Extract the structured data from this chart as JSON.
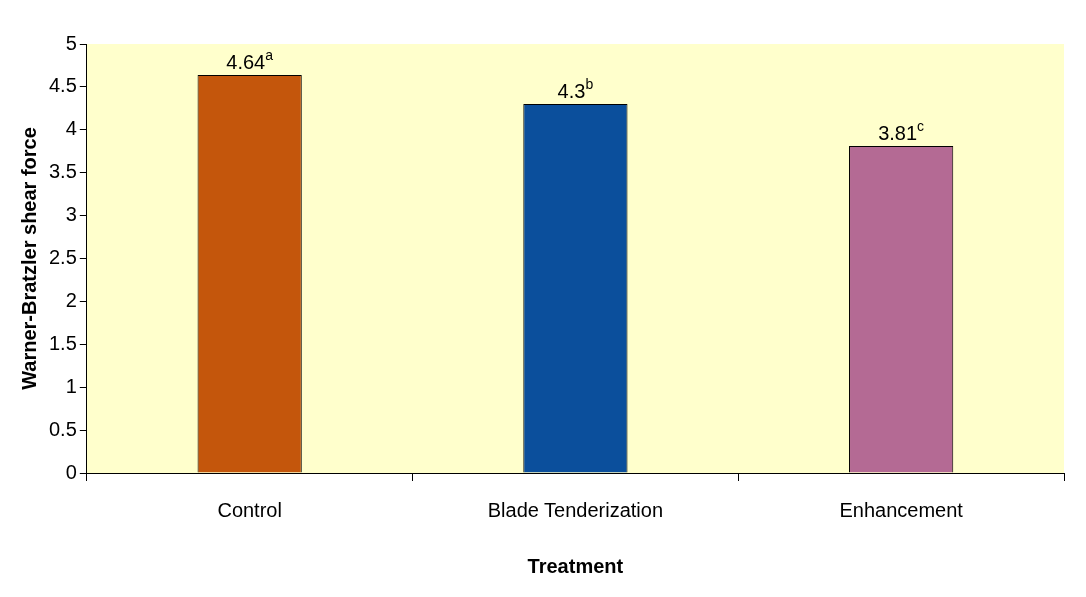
{
  "chart_data": {
    "type": "bar",
    "xlabel": "Treatment",
    "ylabel": "Warner-Bratzler shear force",
    "categories": [
      "Control",
      "Blade Tenderization",
      "Enhancement"
    ],
    "values": [
      4.64,
      4.3,
      3.81
    ],
    "value_labels": [
      "4.64$^{a}$",
      "4.3$^{b}$",
      "3.81$^{c}$"
    ],
    "colors": [
      "#c4560c",
      "#0b4f9c",
      "#b46a94"
    ],
    "ylim": [
      0,
      5
    ],
    "yticks": [
      0,
      0.5,
      1,
      1.5,
      2,
      2.5,
      3,
      3.5,
      4,
      4.5,
      5
    ],
    "grid": false,
    "legend": false
  }
}
